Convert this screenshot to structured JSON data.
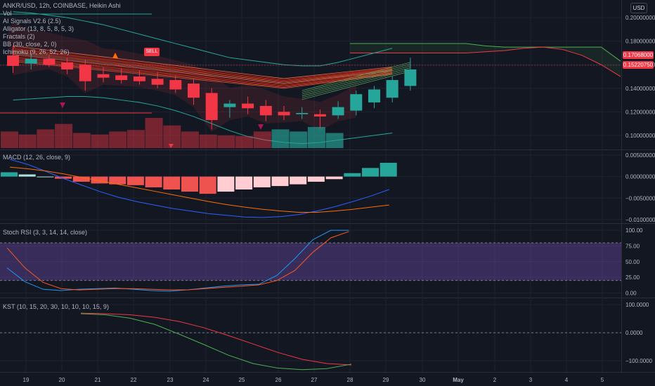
{
  "header": {
    "symbol_line": "ANKR/USD, 12h, COINBASE, Heikin Ashi",
    "currency_badge": "USD"
  },
  "indicators": {
    "vol": "Vol",
    "ai_signals": "AI Signals V2.6 (2.5)",
    "alligator": "Alligator (13, 8, 5, 8, 5, 3)",
    "fractals": "Fractals (2)",
    "bb": "BB (30, close, 2, 0)",
    "ichimoku": "Ichimoku (9, 26, 52, 26)"
  },
  "signals": {
    "sell_label": "SELL"
  },
  "price_tags": {
    "upper": "0.17068000",
    "lower": "0.15220750"
  },
  "panes": {
    "macd_label": "MACD (12, 26, close, 9)",
    "stoch_label": "Stoch RSI (3, 3, 14, 14, close)",
    "kst_label": "KST (10, 15, 20, 30, 10, 10, 10, 15, 9)"
  },
  "colors": {
    "background": "#131722",
    "bull": "#26a69a",
    "bear": "#f23645",
    "grid": "#1f2330",
    "macd_line": "#2962ff",
    "macd_signal": "#ff6d00",
    "stoch_k": "#2196f3",
    "stoch_d": "#ff5722",
    "stoch_band": "#4a1f6a",
    "kst_line": "#4caf50",
    "kst_signal": "#f23645"
  },
  "chart_data": [
    {
      "type": "candlestick",
      "pane": "price",
      "x_ticks": [
        "19",
        "20",
        "21",
        "22",
        "23",
        "24",
        "25",
        "26",
        "27",
        "28",
        "29",
        "30",
        "May",
        "2",
        "3",
        "4",
        "5"
      ],
      "y_ticks": [
        "0.20000000",
        "0.18000000",
        "0.16000000",
        "0.14000000",
        "0.12000000",
        "0.10000000"
      ],
      "y_range": [
        0.088,
        0.215
      ],
      "candles": [
        {
          "o": 0.168,
          "h": 0.176,
          "l": 0.153,
          "c": 0.159
        },
        {
          "o": 0.161,
          "h": 0.17,
          "l": 0.156,
          "c": 0.165
        },
        {
          "o": 0.165,
          "h": 0.169,
          "l": 0.158,
          "c": 0.16
        },
        {
          "o": 0.162,
          "h": 0.166,
          "l": 0.152,
          "c": 0.156
        },
        {
          "o": 0.16,
          "h": 0.164,
          "l": 0.138,
          "c": 0.146
        },
        {
          "o": 0.152,
          "h": 0.158,
          "l": 0.145,
          "c": 0.149
        },
        {
          "o": 0.151,
          "h": 0.157,
          "l": 0.144,
          "c": 0.147
        },
        {
          "o": 0.15,
          "h": 0.155,
          "l": 0.143,
          "c": 0.146
        },
        {
          "o": 0.148,
          "h": 0.154,
          "l": 0.14,
          "c": 0.143
        },
        {
          "o": 0.147,
          "h": 0.151,
          "l": 0.136,
          "c": 0.139
        },
        {
          "o": 0.144,
          "h": 0.148,
          "l": 0.126,
          "c": 0.132
        },
        {
          "o": 0.136,
          "h": 0.14,
          "l": 0.105,
          "c": 0.113
        },
        {
          "o": 0.124,
          "h": 0.13,
          "l": 0.115,
          "c": 0.127
        },
        {
          "o": 0.127,
          "h": 0.133,
          "l": 0.118,
          "c": 0.123
        },
        {
          "o": 0.125,
          "h": 0.13,
          "l": 0.112,
          "c": 0.117
        },
        {
          "o": 0.12,
          "h": 0.125,
          "l": 0.113,
          "c": 0.117
        },
        {
          "o": 0.118,
          "h": 0.124,
          "l": 0.114,
          "c": 0.119
        },
        {
          "o": 0.118,
          "h": 0.122,
          "l": 0.106,
          "c": 0.116
        },
        {
          "o": 0.117,
          "h": 0.129,
          "l": 0.114,
          "c": 0.124
        },
        {
          "o": 0.121,
          "h": 0.138,
          "l": 0.117,
          "c": 0.135
        },
        {
          "o": 0.128,
          "h": 0.142,
          "l": 0.123,
          "c": 0.139
        },
        {
          "o": 0.132,
          "h": 0.15,
          "l": 0.128,
          "c": 0.147
        },
        {
          "o": 0.142,
          "h": 0.166,
          "l": 0.138,
          "c": 0.156
        }
      ],
      "volume": [
        {
          "v": 0.55,
          "dir": "bear"
        },
        {
          "v": 0.45,
          "dir": "bear"
        },
        {
          "v": 0.62,
          "dir": "bear"
        },
        {
          "v": 0.8,
          "dir": "bear"
        },
        {
          "v": 0.5,
          "dir": "bear"
        },
        {
          "v": 0.45,
          "dir": "bear"
        },
        {
          "v": 0.55,
          "dir": "bear"
        },
        {
          "v": 0.6,
          "dir": "bear"
        },
        {
          "v": 1.0,
          "dir": "bear"
        },
        {
          "v": 0.75,
          "dir": "bear"
        },
        {
          "v": 0.55,
          "dir": "bear"
        },
        {
          "v": 0.45,
          "dir": "bear"
        },
        {
          "v": 0.42,
          "dir": "bear"
        },
        {
          "v": 0.4,
          "dir": "bear"
        },
        {
          "v": 0.55,
          "dir": "bear"
        },
        {
          "v": 0.62,
          "dir": "bull"
        },
        {
          "v": 0.55,
          "dir": "bull"
        },
        {
          "v": 0.7,
          "dir": "bull"
        },
        {
          "v": 0.5,
          "dir": "bull"
        }
      ],
      "volume_offset": 0,
      "bb_upper": [
        0.205,
        0.204,
        0.202,
        0.2,
        0.197,
        0.194,
        0.19,
        0.186,
        0.182,
        0.178,
        0.174,
        0.17,
        0.166,
        0.164,
        0.162,
        0.16,
        0.159,
        0.159,
        0.162,
        0.166,
        0.17,
        0.174
      ],
      "bb_lower": [
        0.13,
        0.131,
        0.132,
        0.133,
        0.133,
        0.132,
        0.13,
        0.128,
        0.125,
        0.121,
        0.116,
        0.11,
        0.104,
        0.099,
        0.096,
        0.094,
        0.093,
        0.094,
        0.096,
        0.098,
        0.1,
        0.102
      ],
      "ichimoku_span_a": [
        0.178,
        0.178,
        0.178,
        0.178,
        0.178,
        0.178,
        0.178,
        0.176,
        0.175,
        0.175,
        0.175,
        0.175,
        0.175,
        0.175,
        0.163
      ],
      "ichimoku_span_b": [
        0.17,
        0.17,
        0.17,
        0.17,
        0.17,
        0.17,
        0.17,
        0.171,
        0.172,
        0.174,
        0.175,
        0.173,
        0.168,
        0.16,
        0.15
      ]
    },
    {
      "type": "bar+line",
      "pane": "macd",
      "y_ticks": [
        "0.00500000",
        "0.00000000",
        "−0.00500000",
        "−0.01000000"
      ],
      "y_range": [
        -0.0105,
        0.0058
      ],
      "histogram": [
        0.001,
        0.0005,
        0.0,
        -0.0005,
        -0.0012,
        -0.0016,
        -0.0018,
        -0.002,
        -0.0025,
        -0.003,
        -0.0035,
        -0.004,
        -0.0035,
        -0.003,
        -0.0025,
        -0.0022,
        -0.0018,
        -0.0012,
        -0.0006,
        0.0008,
        0.002,
        0.0032
      ],
      "macd": [
        0.004,
        0.0028,
        0.0012,
        -0.0005,
        -0.002,
        -0.0035,
        -0.0048,
        -0.0058,
        -0.0066,
        -0.0074,
        -0.008,
        -0.0086,
        -0.009,
        -0.0094,
        -0.0095,
        -0.0093,
        -0.0088,
        -0.008,
        -0.007,
        -0.0058,
        -0.0045,
        -0.003
      ],
      "signal": [
        0.0022,
        0.0018,
        0.0013,
        0.0006,
        -0.0002,
        -0.001,
        -0.0018,
        -0.0026,
        -0.0034,
        -0.0042,
        -0.005,
        -0.0058,
        -0.0065,
        -0.0071,
        -0.0076,
        -0.008,
        -0.0083,
        -0.0083,
        -0.008,
        -0.0076,
        -0.0071,
        -0.0066
      ]
    },
    {
      "type": "line",
      "pane": "stoch_rsi",
      "y_ticks": [
        "100.00",
        "75.00",
        "50.00",
        "25.00",
        "0.00"
      ],
      "y_range": [
        -5,
        108
      ],
      "band": [
        20,
        80
      ],
      "k": [
        40,
        18,
        6,
        4,
        6,
        7,
        8,
        6,
        4,
        3,
        5,
        8,
        11,
        13,
        14,
        28,
        55,
        85,
        100,
        100
      ],
      "d": [
        72,
        40,
        17,
        7,
        5,
        6,
        7,
        7,
        6,
        5,
        5,
        7,
        9,
        11,
        13,
        20,
        36,
        65,
        88,
        98
      ]
    },
    {
      "type": "line",
      "pane": "kst",
      "y_ticks": [
        "100.0000",
        "0.0000",
        "−100.0000"
      ],
      "y_range": [
        -135,
        118
      ],
      "kst": [
        68,
        64,
        52,
        30,
        -5,
        -42,
        -80,
        -110,
        -126,
        -132,
        -128,
        -112
      ],
      "signal": [
        70,
        68,
        64,
        55,
        40,
        18,
        -10,
        -40,
        -70,
        -95,
        -110,
        -115
      ]
    }
  ]
}
